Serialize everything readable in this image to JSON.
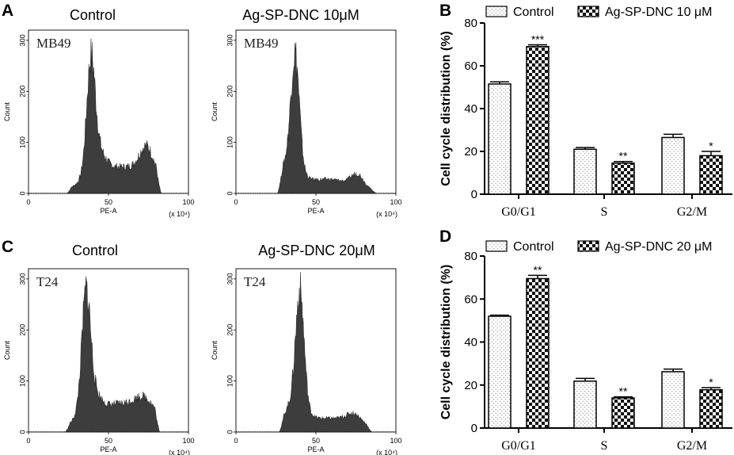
{
  "chart_data": [
    {
      "panel": "A",
      "type": "area",
      "histograms": [
        {
          "title": "Control",
          "cell_line": "MB49",
          "xlabel": "PE-A",
          "x_unit": "(x 10⁴)",
          "xlim": [
            0,
            100
          ],
          "ylim": [
            0,
            320
          ],
          "x_ticks": [
            "0",
            "50",
            "100"
          ],
          "y_ticks": [
            "0",
            "100",
            "200",
            "300"
          ],
          "peaks": [
            {
              "center": 39,
              "width": 2.6,
              "height": 195
            },
            {
              "center": 42,
              "width": 5,
              "height": 55
            },
            {
              "center": 59,
              "width": 19,
              "height": 52
            },
            {
              "center": 74,
              "width": 4.5,
              "height": 55
            }
          ],
          "range": [
            24,
            83
          ]
        },
        {
          "title": "Ag-SP-DNC 10μM",
          "cell_line": "MB49",
          "xlabel": "PE-A",
          "x_unit": "(x 10⁴)",
          "xlim": [
            0,
            100
          ],
          "ylim": [
            0,
            320
          ],
          "x_ticks": [
            "0",
            "50",
            "100"
          ],
          "y_ticks": [
            "0",
            "100",
            "200",
            "300"
          ],
          "peaks": [
            {
              "center": 37,
              "width": 2.6,
              "height": 210
            },
            {
              "center": 34,
              "width": 6,
              "height": 60
            },
            {
              "center": 57,
              "width": 16,
              "height": 28
            },
            {
              "center": 76,
              "width": 4,
              "height": 25
            }
          ],
          "range": [
            26,
            88
          ]
        }
      ]
    },
    {
      "panel": "B",
      "type": "bar",
      "categories": [
        "G0/G1",
        "S",
        "G2/M"
      ],
      "series": [
        {
          "name": "Control",
          "values": [
            51.5,
            21,
            26.5
          ],
          "errors": [
            1,
            0.8,
            1.5
          ]
        },
        {
          "name": "Ag-SP-DNC 10 μM",
          "values": [
            69,
            14.5,
            18
          ],
          "errors": [
            0.8,
            0.8,
            2
          ]
        }
      ],
      "significance": [
        "***",
        "**",
        "*"
      ],
      "xlabel": "",
      "ylabel": "Cell cycle distribution (%)",
      "ylim": [
        0,
        80
      ],
      "y_ticks": [
        "0",
        "20",
        "40",
        "60",
        "80"
      ]
    },
    {
      "panel": "C",
      "type": "area",
      "histograms": [
        {
          "title": "Control",
          "cell_line": "T24",
          "xlabel": "PE-A",
          "x_unit": "(x 10⁴)",
          "xlim": [
            0,
            100
          ],
          "ylim": [
            0,
            320
          ],
          "x_ticks": [
            "0",
            "50",
            "100"
          ],
          "y_ticks": [
            "0",
            "100",
            "200",
            "300"
          ],
          "peaks": [
            {
              "center": 36,
              "width": 2.6,
              "height": 195
            },
            {
              "center": 38,
              "width": 5,
              "height": 60
            },
            {
              "center": 57,
              "width": 19,
              "height": 55
            },
            {
              "center": 73,
              "width": 6,
              "height": 30
            }
          ],
          "range": [
            23,
            82
          ]
        },
        {
          "title": "Ag-SP-DNC 20μM",
          "cell_line": "T24",
          "xlabel": "PE-A",
          "x_unit": "(x 10⁴)",
          "xlim": [
            0,
            100
          ],
          "ylim": [
            0,
            320
          ],
          "x_ticks": [
            "0",
            "50",
            "100"
          ],
          "y_ticks": [
            "0",
            "100",
            "200",
            "300"
          ],
          "peaks": [
            {
              "center": 40,
              "width": 2.6,
              "height": 215
            },
            {
              "center": 37,
              "width": 6,
              "height": 55
            },
            {
              "center": 58,
              "width": 16,
              "height": 27
            },
            {
              "center": 74,
              "width": 5,
              "height": 20
            }
          ],
          "range": [
            27,
            85
          ]
        }
      ]
    },
    {
      "panel": "D",
      "type": "bar",
      "categories": [
        "G0/G1",
        "S",
        "G2/M"
      ],
      "series": [
        {
          "name": "Control",
          "values": [
            52,
            21.8,
            26.2
          ],
          "errors": [
            0.5,
            1.3,
            1.2
          ]
        },
        {
          "name": "Ag-SP-DNC 20 μM",
          "values": [
            69.5,
            14,
            17.8
          ],
          "errors": [
            1.5,
            0.5,
            1
          ]
        }
      ],
      "significance": [
        "**",
        "**",
        "*"
      ],
      "xlabel": "",
      "ylabel": "Cell cycle distribution (%)",
      "ylim": [
        0,
        80
      ],
      "y_ticks": [
        "0",
        "20",
        "40",
        "60",
        "80"
      ]
    }
  ],
  "colors": {
    "histogram_fill": "#3d3d3d",
    "axis": "#000000"
  }
}
